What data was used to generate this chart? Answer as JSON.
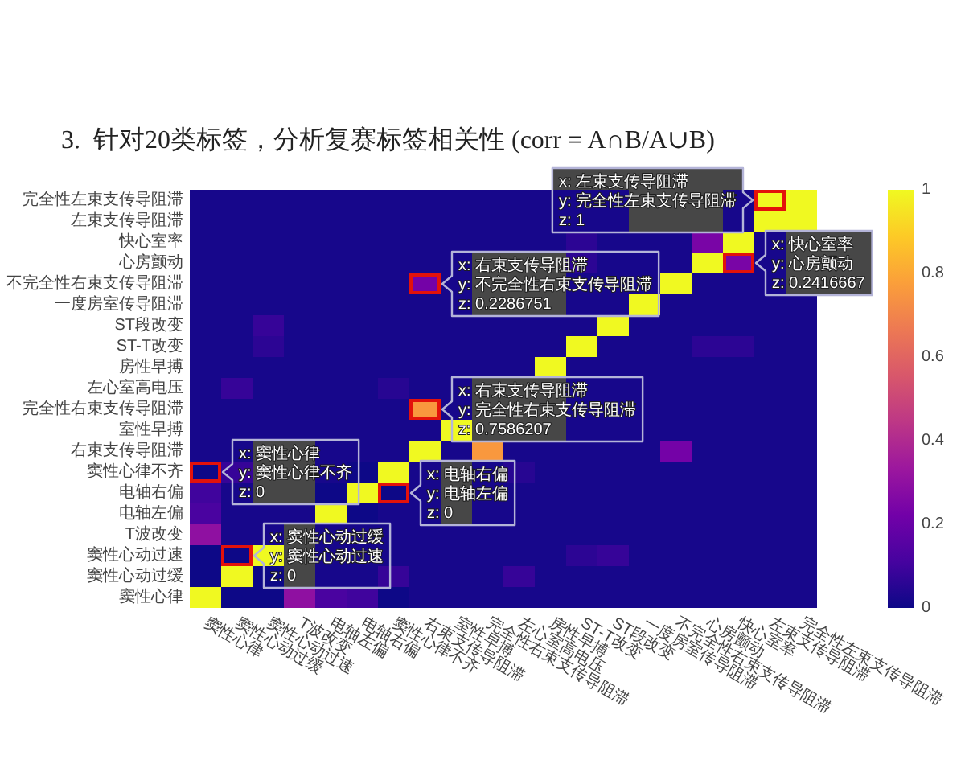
{
  "chart_data": {
    "type": "heatmap",
    "title": "3.  针对20类标签，分析复赛标签相关性 (corr = A∩B/A∪B)",
    "categories": [
      "窦性心律",
      "窦性心动过缓",
      "窦性心动过速",
      "T波改变",
      "电轴左偏",
      "电轴右偏",
      "窦性心律不齐",
      "右束支传导阻滞",
      "室性早搏",
      "完全性右束支传导阻滞",
      "左心室高电压",
      "房性早搏",
      "ST-T改变",
      "ST段改变",
      "一度房室传导阻滞",
      "不完全性右束支传导阻滞",
      "心房颤动",
      "快心室率",
      "左束支传导阻滞",
      "完全性左束支传导阻滞"
    ],
    "y_categories": [
      "完全性左束支传导阻滞",
      "左束支传导阻滞",
      "快心室率",
      "心房颤动",
      "不完全性右束支传导阻滞",
      "一度房室传导阻滞",
      "ST段改变",
      "ST-T改变",
      "房性早搏",
      "左心室高电压",
      "完全性右束支传导阻滞",
      "室性早搏",
      "右束支传导阻滞",
      "窦性心律不齐",
      "电轴右偏",
      "电轴左偏",
      "T波改变",
      "窦性心动过速",
      "窦性心动过缓",
      "窦性心律"
    ],
    "cells": [
      [
        0.02,
        0.02,
        0.02,
        0.02,
        0.02,
        0.02,
        0.02,
        0.02,
        0.02,
        0.02,
        0.02,
        0.02,
        0.02,
        0.02,
        null,
        null,
        null,
        0.02,
        1,
        1
      ],
      [
        0.02,
        0.02,
        0.02,
        0.02,
        0.02,
        0.02,
        0.02,
        0.02,
        0.02,
        0.02,
        0.02,
        0.02,
        0.02,
        0.02,
        null,
        null,
        null,
        0.02,
        1,
        1
      ],
      [
        0.02,
        0.02,
        0.02,
        0.02,
        0.02,
        0.02,
        0.02,
        0.02,
        0.02,
        0.02,
        0.02,
        0.02,
        0.06,
        0.02,
        0.02,
        0.02,
        0.2416667,
        1,
        0.02,
        null
      ],
      [
        0.02,
        0.02,
        0.02,
        0.02,
        0.02,
        0.02,
        0.02,
        0.02,
        0.02,
        null,
        null,
        null,
        0.06,
        0.02,
        0.02,
        0.02,
        1,
        0.2416667,
        0.02,
        null
      ],
      [
        0.02,
        0.02,
        0.02,
        0.02,
        0.02,
        0.02,
        0.02,
        0.2286751,
        0.02,
        null,
        null,
        null,
        0.02,
        0.02,
        0.02,
        1,
        0.02,
        0.02,
        0.02,
        null
      ],
      [
        0.02,
        0.02,
        0.02,
        0.02,
        0.02,
        0.02,
        0.02,
        0.02,
        0.02,
        null,
        null,
        null,
        0.02,
        0.02,
        1,
        0.02,
        0.02,
        0.02,
        0.02,
        0.02
      ],
      [
        0.02,
        0.02,
        0.08,
        0.02,
        0.02,
        0.02,
        0.02,
        0.02,
        0.02,
        0.02,
        0.02,
        0.02,
        0.02,
        1,
        0.02,
        0.02,
        0.02,
        0.02,
        0.02,
        0.02
      ],
      [
        0.02,
        0.02,
        0.06,
        0.02,
        0.02,
        0.02,
        0.02,
        0.02,
        0.02,
        0.02,
        0.02,
        0.02,
        1,
        0.02,
        0.02,
        0.02,
        0.06,
        0.06,
        0.02,
        0.02
      ],
      [
        0.02,
        0.02,
        0.02,
        0.02,
        0.02,
        0.02,
        0.02,
        0.02,
        0.02,
        0.02,
        0.02,
        1,
        0.02,
        0.02,
        0.02,
        0.02,
        0.02,
        0.02,
        0.02,
        0.02
      ],
      [
        0.02,
        0.08,
        0.02,
        0.02,
        0.02,
        0.02,
        0.05,
        0.02,
        0.02,
        null,
        null,
        null,
        0.02,
        0.02,
        0.02,
        0.02,
        0.02,
        0.02,
        0.02,
        0.02
      ],
      [
        0.02,
        0.02,
        0.02,
        0.02,
        0.02,
        0.02,
        0.02,
        0.7586207,
        0.02,
        null,
        null,
        null,
        0.02,
        0.02,
        0.02,
        0.02,
        0.02,
        0.02,
        0.02,
        0.02
      ],
      [
        0.02,
        0.02,
        0.02,
        0.02,
        0.02,
        0.02,
        0.02,
        0.02,
        1,
        null,
        null,
        null,
        0.02,
        0.02,
        0.02,
        0.02,
        0.02,
        0.02,
        0.02,
        0.02
      ],
      [
        0.02,
        0.02,
        null,
        null,
        0.02,
        0.02,
        0.02,
        1,
        0.02,
        0.7586207,
        0.02,
        0.02,
        0.02,
        0.02,
        0.02,
        0.2286751,
        0.02,
        0.02,
        0.02,
        0.02
      ],
      [
        0,
        0.08,
        null,
        null,
        0.02,
        0,
        1,
        0.02,
        null,
        0.02,
        0.05,
        0.02,
        0.02,
        0.02,
        0.02,
        0.02,
        0.02,
        0.02,
        0.02,
        0.02
      ],
      [
        0.1,
        0.02,
        null,
        null,
        0,
        1,
        0,
        0.02,
        null,
        0.02,
        0.02,
        0.02,
        0.02,
        0.02,
        0.02,
        0.02,
        0.02,
        0.02,
        0.02,
        0.02
      ],
      [
        0.12,
        0.02,
        0.02,
        0.02,
        1,
        0,
        0.02,
        0.02,
        null,
        0.02,
        0.02,
        0.02,
        0.02,
        0.02,
        0.02,
        0.02,
        0.02,
        0.02,
        0.02,
        0.02
      ],
      [
        0.3,
        0.02,
        0.02,
        null,
        0.02,
        0.02,
        0.02,
        0.02,
        0.02,
        0.02,
        0.02,
        0.02,
        0.02,
        0.02,
        0.02,
        0.02,
        0.02,
        0.02,
        0.02,
        0.02
      ],
      [
        0,
        0,
        1,
        null,
        0.02,
        0.02,
        0.02,
        0.02,
        0.02,
        0.02,
        0.02,
        0.02,
        0.06,
        0.08,
        0.02,
        0.02,
        0.02,
        0.02,
        0.02,
        0.02
      ],
      [
        0,
        1,
        0,
        null,
        0.02,
        0.02,
        0.08,
        0.02,
        0.02,
        0.02,
        0.08,
        0.02,
        0.02,
        0.02,
        0.02,
        0.02,
        0.02,
        0.02,
        0.02,
        0.02
      ],
      [
        1,
        0,
        0,
        0.3,
        0.12,
        0.1,
        0,
        0.02,
        0.02,
        0.02,
        0.02,
        0.02,
        0.02,
        0.02,
        0.02,
        0.02,
        0.02,
        0.02,
        0.02,
        0.02
      ]
    ],
    "clim": [
      0,
      1
    ],
    "cticks": [
      0,
      0.2,
      0.4,
      0.6,
      0.8,
      1
    ],
    "annotations": [
      {
        "text": "x: 窦性心律\ny: 窦性心律不齐\nz: 0",
        "x": "窦性心律",
        "y": "窦性心律不齐"
      },
      {
        "text": "x: 窦性心动过缓\ny: 窦性心动过速\nz: 0",
        "x": "窦性心动过缓",
        "y": "窦性心动过速"
      },
      {
        "text": "x: 电轴右偏\ny: 电轴左偏\nz: 0",
        "x": "窦性心律不齐",
        "y": "电轴右偏"
      },
      {
        "text": "x: 右束支传导阻滞\ny: 不完全性右束支传导阻滞\nz: 0.2286751",
        "x": "右束支传导阻滞",
        "y": "不完全性右束支传导阻滞"
      },
      {
        "text": "x: 右束支传导阻滞\ny: 完全性右束支传导阻滞\nz: 0.7586207",
        "x": "右束支传导阻滞",
        "y": "完全性右束支传导阻滞"
      },
      {
        "text": "x: 左束支传导阻滞\ny: 完全性左束支传导阻滞\nz: 1",
        "x": "左束支传导阻滞",
        "y": "完全性左束支传导阻滞"
      },
      {
        "text": "x: 快心室率\ny: 心房颤动\nz: 0.2416667",
        "x": "快心室率",
        "y": "心房颤动"
      }
    ]
  }
}
